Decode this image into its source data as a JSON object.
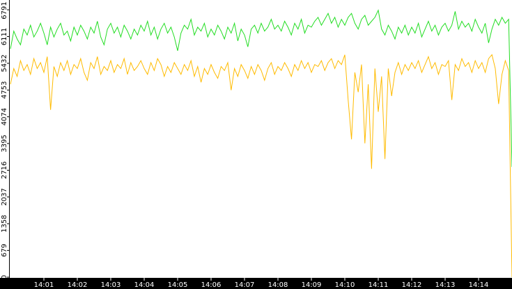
{
  "chart_data": {
    "type": "line",
    "x": [
      0,
      0.1,
      0.2,
      0.3,
      0.4,
      0.5,
      0.6,
      0.7,
      0.8,
      0.9,
      1,
      1.1,
      1.2,
      1.3,
      1.4,
      1.5,
      1.6,
      1.7,
      1.8,
      1.9,
      2,
      2.1,
      2.2,
      2.3,
      2.4,
      2.5,
      2.6,
      2.7,
      2.8,
      2.9,
      3,
      3.1,
      3.2,
      3.3,
      3.4,
      3.5,
      3.6,
      3.7,
      3.8,
      3.9,
      4,
      4.1,
      4.2,
      4.3,
      4.4,
      4.5,
      4.6,
      4.7,
      4.8,
      4.9,
      5,
      5.1,
      5.2,
      5.3,
      5.4,
      5.5,
      5.6,
      5.7,
      5.8,
      5.9,
      6,
      6.1,
      6.2,
      6.3,
      6.4,
      6.5,
      6.6,
      6.7,
      6.8,
      6.9,
      7,
      7.1,
      7.2,
      7.3,
      7.4,
      7.5,
      7.6,
      7.7,
      7.8,
      7.9,
      8,
      8.1,
      8.2,
      8.3,
      8.4,
      8.5,
      8.6,
      8.7,
      8.8,
      8.9,
      9,
      9.1,
      9.2,
      9.3,
      9.4,
      9.5,
      9.6,
      9.7,
      9.8,
      9.9,
      10,
      10.1,
      10.2,
      10.3,
      10.4,
      10.5,
      10.6,
      10.7,
      10.8,
      10.9,
      11,
      11.1,
      11.2,
      11.3,
      11.4,
      11.5,
      11.6,
      11.7,
      11.8,
      11.9,
      12,
      12.1,
      12.2,
      12.3,
      12.4,
      12.5,
      12.6,
      12.7,
      12.8,
      12.9,
      13,
      13.1,
      13.2,
      13.3,
      13.4,
      13.5,
      13.6,
      13.7,
      13.8,
      13.9,
      14,
      14.1,
      14.2,
      14.3,
      14.4,
      14.5,
      14.6,
      14.7,
      14.8,
      14.9,
      15
    ],
    "series": [
      {
        "color": "#22dd22",
        "values": [
          5800,
          6250,
          6050,
          5900,
          6300,
          6150,
          6400,
          6100,
          6250,
          6450,
          6200,
          5900,
          6350,
          6100,
          6300,
          6450,
          6150,
          6250,
          6000,
          6350,
          6150,
          6400,
          6250,
          6050,
          6350,
          6200,
          6500,
          6100,
          5900,
          6300,
          6450,
          6200,
          6350,
          6100,
          6400,
          6250,
          6050,
          6300,
          6150,
          6400,
          6250,
          6500,
          6150,
          6350,
          6050,
          6300,
          6450,
          6200,
          6350,
          6100,
          5750,
          6200,
          6400,
          6300,
          6550,
          6150,
          6350,
          6250,
          6450,
          6100,
          6300,
          6150,
          6400,
          6250,
          6050,
          6350,
          6200,
          6450,
          6000,
          6300,
          6150,
          5850,
          6300,
          6400,
          6200,
          6450,
          6250,
          6350,
          6550,
          6300,
          6400,
          6250,
          6500,
          6350,
          6150,
          6450,
          6300,
          6550,
          6200,
          6400,
          6350,
          6500,
          6600,
          6400,
          6550,
          6700,
          6450,
          6600,
          6350,
          6550,
          6400,
          6600,
          6700,
          6450,
          6300,
          6550,
          6650,
          6400,
          6500,
          6600,
          6780,
          6300,
          6150,
          6400,
          6250,
          6050,
          6350,
          6200,
          6400,
          6150,
          6350,
          6200,
          6450,
          6100,
          6300,
          6500,
          6250,
          6400,
          6150,
          6350,
          6450,
          6250,
          6400,
          6750,
          6300,
          6500,
          6350,
          6450,
          6250,
          6550,
          6350,
          6200,
          6450,
          5950,
          6300,
          6550,
          6400,
          6600,
          6450,
          6550,
          2800
        ]
      },
      {
        "color": "#ffbb00",
        "values": [
          4900,
          5300,
          5100,
          5500,
          5250,
          5400,
          5150,
          5550,
          5300,
          5450,
          5200,
          5600,
          4250,
          5350,
          5100,
          5450,
          5250,
          5500,
          5150,
          5400,
          5300,
          5550,
          5200,
          5000,
          5450,
          5300,
          5600,
          5150,
          5350,
          5250,
          5500,
          5200,
          5400,
          5300,
          5550,
          5150,
          5450,
          5250,
          5350,
          5500,
          5300,
          5150,
          5450,
          5250,
          5550,
          5400,
          5100,
          5350,
          5200,
          5450,
          5300,
          5150,
          5400,
          5250,
          5500,
          5100,
          5350,
          4950,
          5300,
          5150,
          5400,
          5200,
          5050,
          5350,
          5250,
          5450,
          4750,
          5300,
          5100,
          5400,
          5250,
          5050,
          5350,
          5150,
          5400,
          5250,
          5000,
          5300,
          5450,
          5150,
          5350,
          5250,
          5450,
          5300,
          5100,
          5400,
          5250,
          5500,
          5300,
          5450,
          5200,
          5400,
          5350,
          5500,
          5250,
          5450,
          5550,
          5300,
          5500,
          5400,
          5650,
          4500,
          3500,
          5200,
          4700,
          5400,
          3400,
          4900,
          2750,
          5300,
          4200,
          5100,
          3000,
          5300,
          4600,
          5200,
          5450,
          5150,
          5400,
          5250,
          5450,
          5300,
          5500,
          5200,
          5400,
          5600,
          5300,
          5450,
          5150,
          5400,
          5350,
          5500,
          4500,
          5400,
          5250,
          5550,
          5350,
          5450,
          5200,
          5500,
          5300,
          5450,
          5200,
          5550,
          5650,
          5300,
          4400,
          5150,
          5500,
          5250,
          0
        ]
      }
    ],
    "xlim": [
      0,
      15
    ],
    "xticks": [
      {
        "value": 1,
        "label": "14:01"
      },
      {
        "value": 2,
        "label": "14:02"
      },
      {
        "value": 3,
        "label": "14:03"
      },
      {
        "value": 4,
        "label": "14:04"
      },
      {
        "value": 5,
        "label": "14:05"
      },
      {
        "value": 6,
        "label": "14:06"
      },
      {
        "value": 7,
        "label": "14:07"
      },
      {
        "value": 8,
        "label": "14:08"
      },
      {
        "value": 9,
        "label": "14:09"
      },
      {
        "value": 10,
        "label": "14:10"
      },
      {
        "value": 11,
        "label": "14:11"
      },
      {
        "value": 12,
        "label": "14:12"
      },
      {
        "value": 13,
        "label": "14:13"
      },
      {
        "value": 14,
        "label": "14:14"
      }
    ],
    "ylim": [
      0,
      7040
    ],
    "yticks": [
      0,
      679,
      1358,
      2037,
      2716,
      3395,
      4074,
      4753,
      5432,
      6111,
      6791
    ]
  }
}
